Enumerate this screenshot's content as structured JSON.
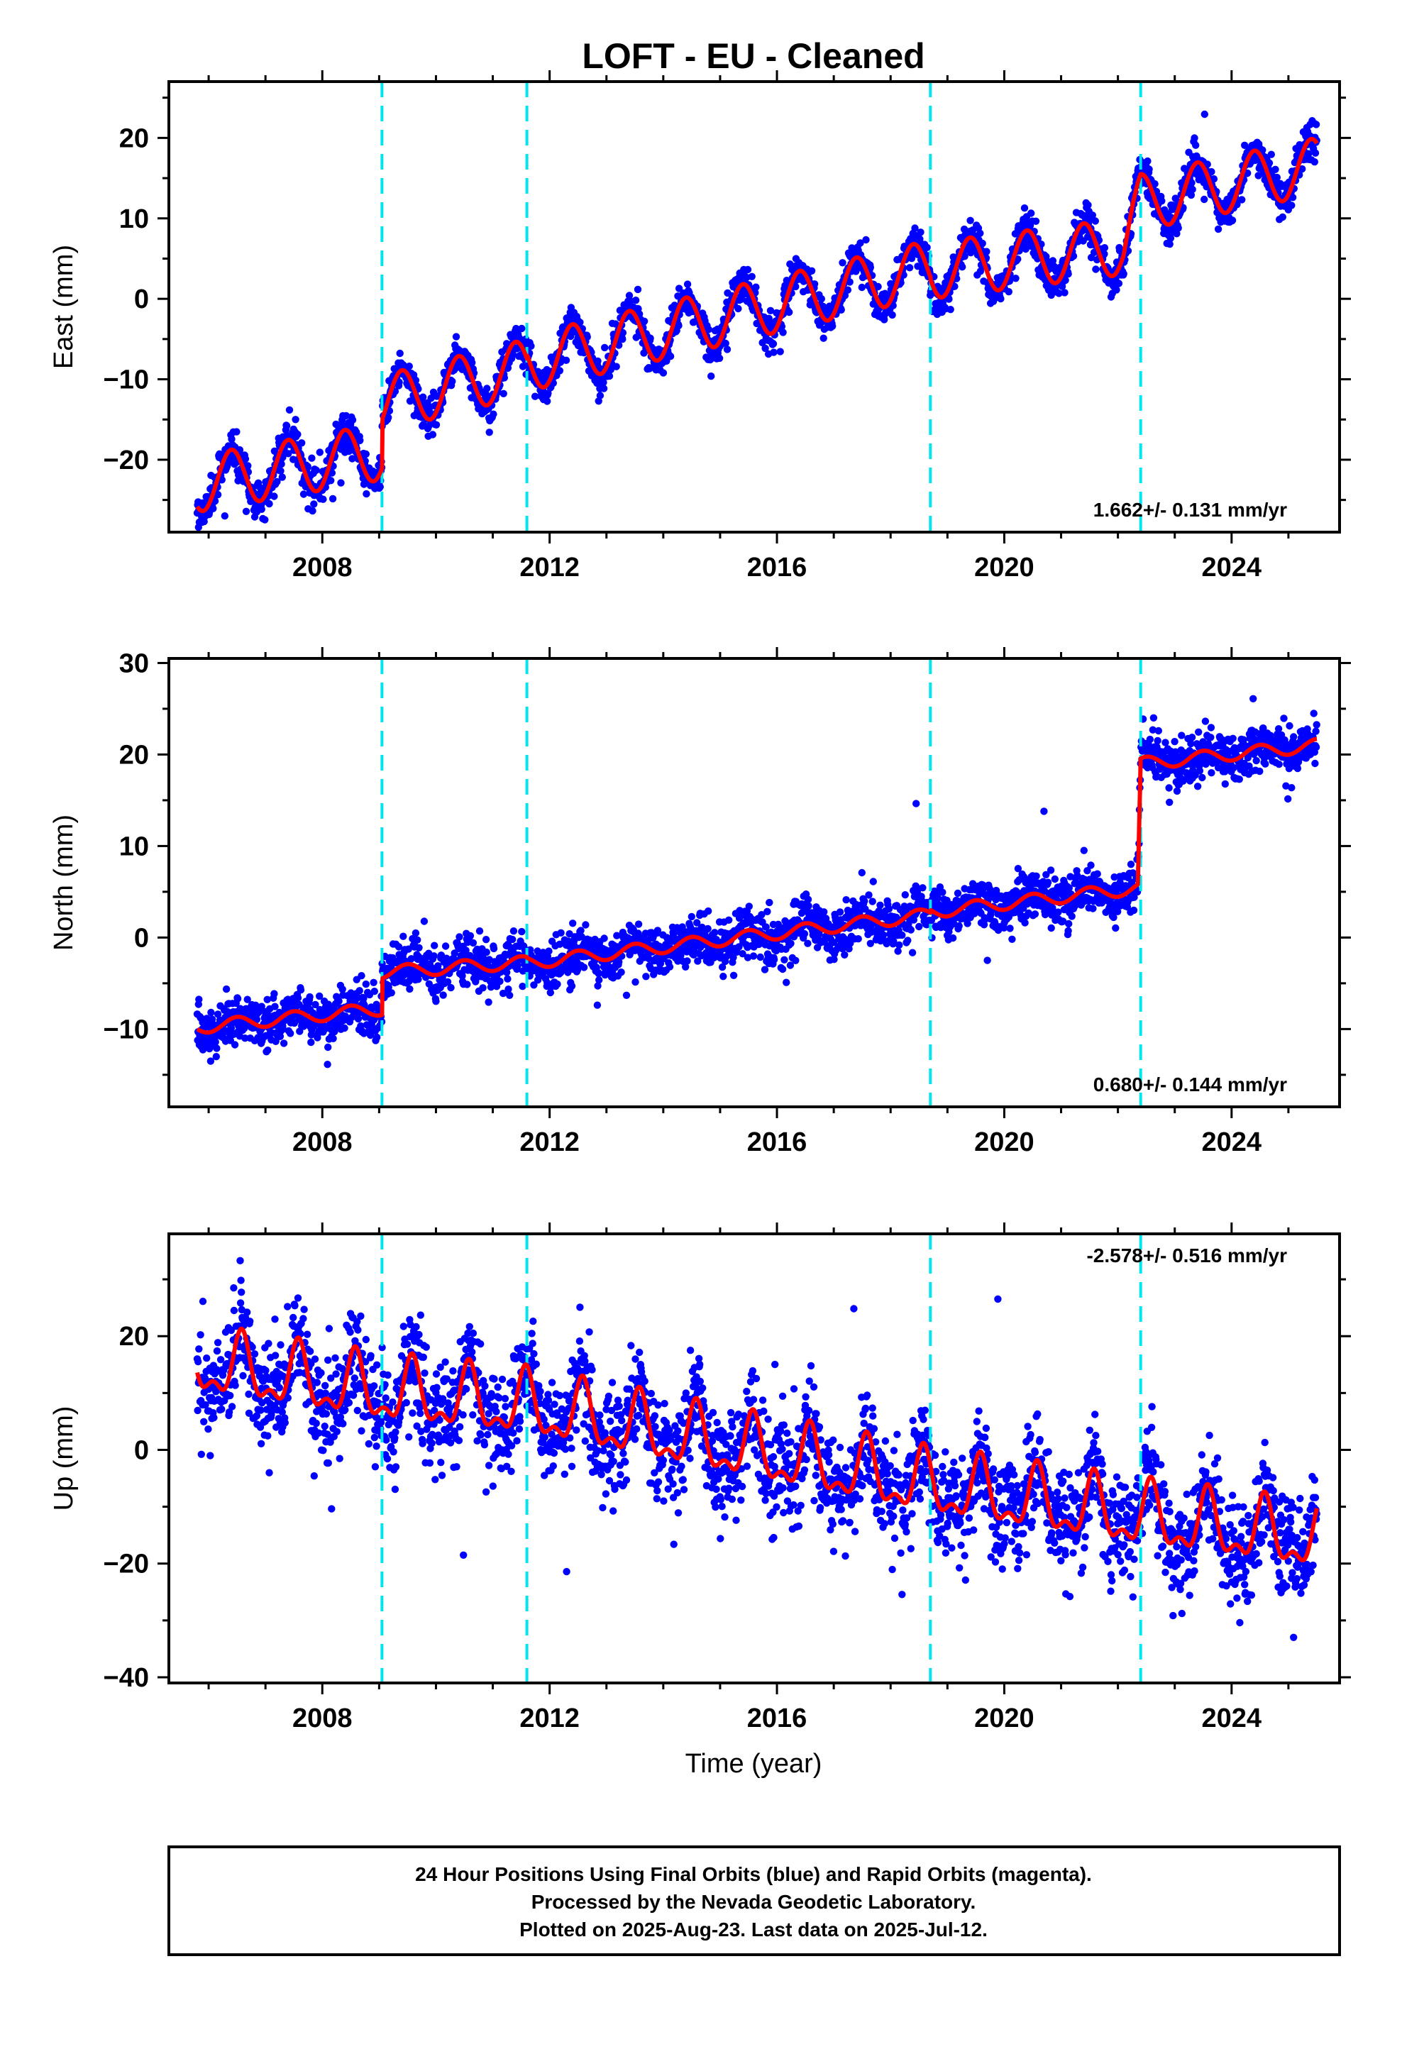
{
  "title": "LOFT  - EU - Cleaned",
  "x_axis_title": "Time (year)",
  "footer": {
    "lines": [
      "24 Hour Positions Using Final Orbits (blue) and Rapid Orbits (magenta).",
      "Processed by the Nevada Geodetic Laboratory.",
      "Plotted on 2025-Aug-23. Last data on 2025-Jul-12."
    ]
  },
  "colors": {
    "data": "#0000ff",
    "model": "#ff0000",
    "events": "#00e5ee",
    "frame": "#000000"
  },
  "chart_data": [
    {
      "type": "scatter",
      "ylabel": "East (mm)",
      "rate": "1.662+/- 0.131 mm/yr",
      "xlim": [
        2005.3,
        2025.9
      ],
      "ylim": [
        -29,
        27
      ],
      "xticks": [
        2008,
        2012,
        2016,
        2020,
        2024
      ],
      "yticks": [
        -20,
        -10,
        0,
        10,
        20
      ],
      "events": [
        2009.05,
        2011.6,
        2018.7,
        2022.4
      ],
      "x_start": 2005.8,
      "x_end": 2025.5,
      "model": {
        "knots": [
          [
            2005.8,
            -23.0
          ],
          [
            2009.05,
            -19.0
          ],
          [
            2009.05,
            -13.0
          ],
          [
            2011.6,
            -8.5
          ],
          [
            2011.6,
            -8.0
          ],
          [
            2018.7,
            3.8
          ],
          [
            2018.7,
            3.5
          ],
          [
            2022.1,
            6.5
          ],
          [
            2022.4,
            12.0
          ],
          [
            2025.5,
            16.5
          ]
        ],
        "amplitude": 3.5,
        "phase": 0.4,
        "harmonic2": 0.0
      },
      "scatter_sigma": 1.2
    },
    {
      "type": "scatter",
      "ylabel": "North (mm)",
      "rate": "0.680+/- 0.144 mm/yr",
      "xlim": [
        2005.3,
        2025.9
      ],
      "ylim": [
        -18.5,
        30.5
      ],
      "xticks": [
        2008,
        2012,
        2016,
        2020,
        2024
      ],
      "yticks": [
        -10,
        0,
        10,
        20,
        30
      ],
      "events": [
        2009.05,
        2011.6,
        2018.7,
        2022.4
      ],
      "x_start": 2005.8,
      "x_end": 2025.5,
      "model": {
        "knots": [
          [
            2005.8,
            -9.8
          ],
          [
            2009.05,
            -7.8
          ],
          [
            2009.05,
            -3.8
          ],
          [
            2011.6,
            -2.7
          ],
          [
            2011.6,
            -2.8
          ],
          [
            2018.7,
            2.5
          ],
          [
            2018.7,
            2.8
          ],
          [
            2022.35,
            5.4
          ],
          [
            2022.4,
            19.0
          ],
          [
            2025.5,
            21.0
          ]
        ],
        "amplitude": 0.7,
        "phase": 0.5,
        "harmonic2": 0.0
      },
      "scatter_sigma": 1.3
    },
    {
      "type": "scatter",
      "ylabel": "Up (mm)",
      "rate": "-2.578+/- 0.516 mm/yr",
      "xlim": [
        2005.3,
        2025.9
      ],
      "ylim": [
        -41,
        38
      ],
      "xticks": [
        2008,
        2012,
        2016,
        2020,
        2024
      ],
      "yticks": [
        -40,
        -20,
        0,
        20
      ],
      "events": [
        2009.05,
        2011.6,
        2018.7,
        2022.4
      ],
      "x_start": 2005.8,
      "x_end": 2025.5,
      "model": {
        "knots": [
          [
            2005.8,
            15.0
          ],
          [
            2009.05,
            10.0
          ],
          [
            2011.6,
            7.5
          ],
          [
            2018.7,
            -6.5
          ],
          [
            2022.4,
            -12.0
          ],
          [
            2025.5,
            -16.0
          ]
        ],
        "amplitude": 5.0,
        "phase": 0.58,
        "harmonic2": 2.5
      },
      "scatter_sigma": 4.5
    }
  ]
}
